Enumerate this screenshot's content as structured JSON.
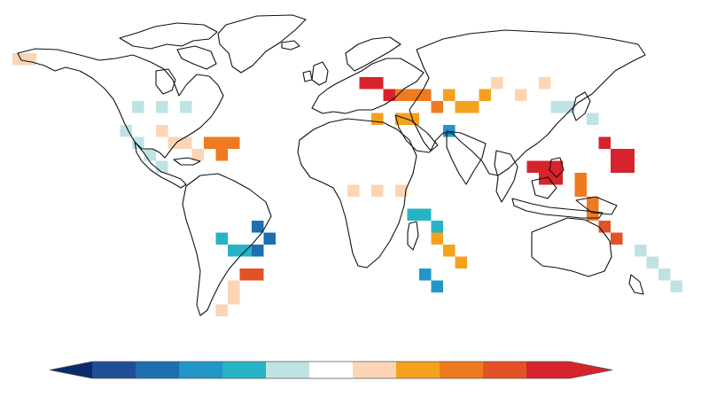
{
  "figure": {
    "type": "gridded-world-map",
    "colorbar": {
      "orientation": "horizontal",
      "tick_labels": [],
      "extend": "both",
      "classes": [
        {
          "name": "class-1",
          "color": "#1f4e96"
        },
        {
          "name": "class-2",
          "color": "#1c6fb0"
        },
        {
          "name": "class-3",
          "color": "#2196c9"
        },
        {
          "name": "class-4",
          "color": "#27b3c6"
        },
        {
          "name": "class-5",
          "color": "#bfe3e4"
        },
        {
          "name": "class-6",
          "color": "#ffffff"
        },
        {
          "name": "class-7",
          "color": "#fbd5b5"
        },
        {
          "name": "class-8",
          "color": "#f6a11d"
        },
        {
          "name": "class-9",
          "color": "#ef7a1f"
        },
        {
          "name": "class-10",
          "color": "#e35125"
        },
        {
          "name": "class-11",
          "color": "#d7232c"
        }
      ],
      "extend_low_color": "#0a2b6b",
      "extend_high_color": "#d7232c"
    },
    "map_regions": [
      {
        "name": "alaska",
        "cells": [
          [
            0,
            4
          ],
          [
            1,
            4
          ]
        ],
        "level": 7
      },
      {
        "name": "canada-north",
        "cells": [
          [
            10,
            8
          ],
          [
            12,
            8
          ],
          [
            14,
            8
          ]
        ],
        "level": 5
      },
      {
        "name": "usa-east",
        "cells": [
          [
            16,
            11
          ],
          [
            17,
            11
          ],
          [
            18,
            11
          ],
          [
            17,
            12
          ]
        ],
        "level": 9
      },
      {
        "name": "usa-interior",
        "cells": [
          [
            12,
            10
          ],
          [
            13,
            11
          ],
          [
            14,
            11
          ],
          [
            15,
            12
          ]
        ],
        "level": 7
      },
      {
        "name": "western-na",
        "cells": [
          [
            9,
            10
          ],
          [
            10,
            11
          ],
          [
            11,
            12
          ],
          [
            12,
            13
          ]
        ],
        "level": 5
      },
      {
        "name": "amazon",
        "cells": [
          [
            20,
            18
          ],
          [
            21,
            19
          ],
          [
            20,
            20
          ]
        ],
        "level": 2
      },
      {
        "name": "south-america-interior",
        "cells": [
          [
            17,
            19
          ],
          [
            18,
            20
          ],
          [
            19,
            20
          ]
        ],
        "level": 4
      },
      {
        "name": "brazil-south",
        "cells": [
          [
            19,
            22
          ],
          [
            20,
            22
          ]
        ],
        "level": 10
      },
      {
        "name": "south-america-south",
        "cells": [
          [
            18,
            23
          ],
          [
            18,
            24
          ],
          [
            17,
            25
          ]
        ],
        "level": 7
      },
      {
        "name": "europe-west",
        "cells": [
          [
            29,
            6
          ],
          [
            30,
            6
          ],
          [
            31,
            7
          ]
        ],
        "level": 11
      },
      {
        "name": "europe-central",
        "cells": [
          [
            32,
            7
          ],
          [
            33,
            7
          ],
          [
            34,
            7
          ],
          [
            35,
            8
          ]
        ],
        "level": 9
      },
      {
        "name": "mediterranean",
        "cells": [
          [
            30,
            9
          ],
          [
            32,
            9
          ],
          [
            33,
            9
          ]
        ],
        "level": 8
      },
      {
        "name": "eastern-europe",
        "cells": [
          [
            36,
            7
          ],
          [
            37,
            8
          ],
          [
            38,
            8
          ],
          [
            39,
            7
          ]
        ],
        "level": 8
      },
      {
        "name": "russia",
        "cells": [
          [
            40,
            6
          ],
          [
            42,
            7
          ],
          [
            44,
            6
          ]
        ],
        "level": 7
      },
      {
        "name": "black-sea",
        "cells": [
          [
            36,
            10
          ]
        ],
        "level": 3
      },
      {
        "name": "central-asia",
        "cells": [
          [
            45,
            8
          ],
          [
            46,
            8
          ],
          [
            48,
            9
          ]
        ],
        "level": 5
      },
      {
        "name": "india",
        "cells": [
          [
            43,
            13
          ],
          [
            44,
            13
          ],
          [
            44,
            14
          ],
          [
            45,
            14
          ],
          [
            45,
            13
          ]
        ],
        "level": 11
      },
      {
        "name": "china-east",
        "cells": [
          [
            49,
            11
          ],
          [
            50,
            12
          ],
          [
            51,
            12
          ],
          [
            50,
            13
          ],
          [
            51,
            13
          ]
        ],
        "level": 11
      },
      {
        "name": "indochina",
        "cells": [
          [
            47,
            14
          ],
          [
            47,
            15
          ],
          [
            48,
            16
          ],
          [
            48,
            17
          ]
        ],
        "level": 9
      },
      {
        "name": "maritime-se-asia",
        "cells": [
          [
            49,
            18
          ],
          [
            50,
            19
          ]
        ],
        "level": 10
      },
      {
        "name": "africa-west-sahel",
        "cells": [
          [
            28,
            15
          ],
          [
            30,
            15
          ],
          [
            32,
            15
          ]
        ],
        "level": 7
      },
      {
        "name": "africa-central",
        "cells": [
          [
            33,
            17
          ],
          [
            34,
            17
          ],
          [
            35,
            18
          ]
        ],
        "level": 4
      },
      {
        "name": "africa-east",
        "cells": [
          [
            35,
            19
          ],
          [
            36,
            20
          ],
          [
            37,
            21
          ]
        ],
        "level": 8
      },
      {
        "name": "southern-africa",
        "cells": [
          [
            34,
            22
          ],
          [
            35,
            23
          ]
        ],
        "level": 3
      },
      {
        "name": "australia",
        "cells": [
          [
            52,
            20
          ],
          [
            53,
            21
          ],
          [
            54,
            22
          ],
          [
            55,
            23
          ]
        ],
        "level": 5
      }
    ]
  }
}
